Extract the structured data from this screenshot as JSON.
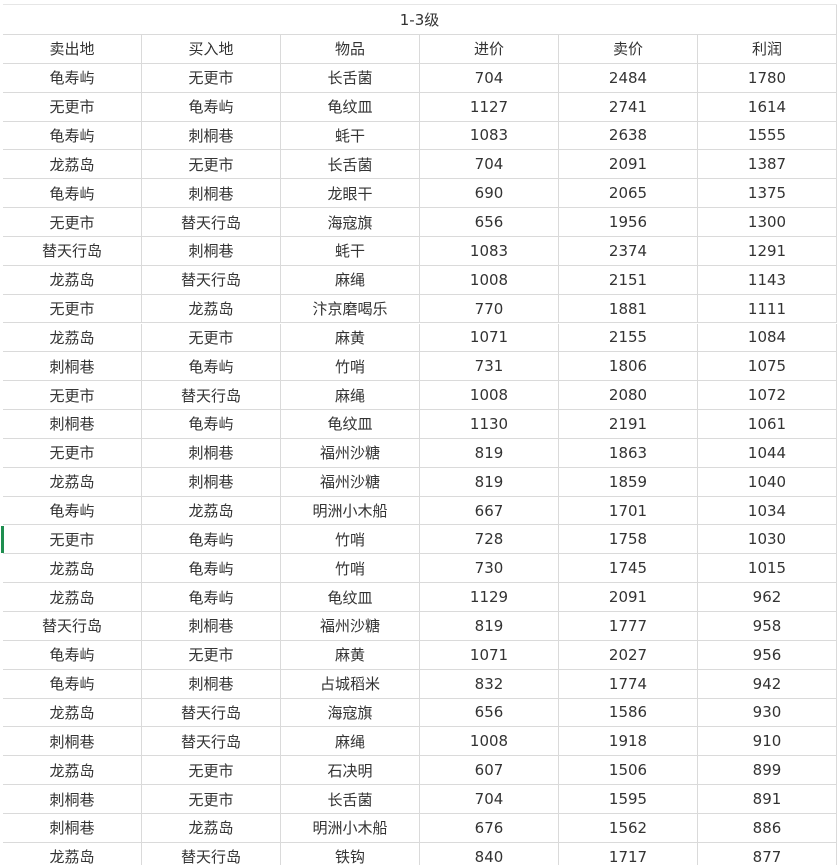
{
  "table": {
    "title": "1-3级",
    "header": [
      "卖出地",
      "买入地",
      "物品",
      "进价",
      "卖价",
      "利润"
    ],
    "rows": [
      [
        "龟寿屿",
        "无更市",
        "长舌菌",
        704,
        2484,
        1780
      ],
      [
        "无更市",
        "龟寿屿",
        "龟纹皿",
        1127,
        2741,
        1614
      ],
      [
        "龟寿屿",
        "刺桐巷",
        "蚝干",
        1083,
        2638,
        1555
      ],
      [
        "龙荔岛",
        "无更市",
        "长舌菌",
        704,
        2091,
        1387
      ],
      [
        "龟寿屿",
        "刺桐巷",
        "龙眼干",
        690,
        2065,
        1375
      ],
      [
        "无更市",
        "替天行岛",
        "海寇旗",
        656,
        1956,
        1300
      ],
      [
        "替天行岛",
        "刺桐巷",
        "蚝干",
        1083,
        2374,
        1291
      ],
      [
        "龙荔岛",
        "替天行岛",
        "麻绳",
        1008,
        2151,
        1143
      ],
      [
        "无更市",
        "龙荔岛",
        "汴京磨喝乐",
        770,
        1881,
        1111
      ],
      [
        "龙荔岛",
        "无更市",
        "麻黄",
        1071,
        2155,
        1084
      ],
      [
        "刺桐巷",
        "龟寿屿",
        "竹哨",
        731,
        1806,
        1075
      ],
      [
        "无更市",
        "替天行岛",
        "麻绳",
        1008,
        2080,
        1072
      ],
      [
        "刺桐巷",
        "龟寿屿",
        "龟纹皿",
        1130,
        2191,
        1061
      ],
      [
        "无更市",
        "刺桐巷",
        "福州沙糖",
        819,
        1863,
        1044
      ],
      [
        "龙荔岛",
        "刺桐巷",
        "福州沙糖",
        819,
        1859,
        1040
      ],
      [
        "龟寿屿",
        "龙荔岛",
        "明洲小木船",
        667,
        1701,
        1034
      ],
      [
        "无更市",
        "龟寿屿",
        "竹哨",
        728,
        1758,
        1030
      ],
      [
        "龙荔岛",
        "龟寿屿",
        "竹哨",
        730,
        1745,
        1015
      ],
      [
        "龙荔岛",
        "龟寿屿",
        "龟纹皿",
        1129,
        2091,
        962
      ],
      [
        "替天行岛",
        "刺桐巷",
        "福州沙糖",
        819,
        1777,
        958
      ],
      [
        "龟寿屿",
        "无更市",
        "麻黄",
        1071,
        2027,
        956
      ],
      [
        "龟寿屿",
        "刺桐巷",
        "占城稻米",
        832,
        1774,
        942
      ],
      [
        "龙荔岛",
        "替天行岛",
        "海寇旗",
        656,
        1586,
        930
      ],
      [
        "刺桐巷",
        "替天行岛",
        "麻绳",
        1008,
        1918,
        910
      ],
      [
        "龙荔岛",
        "无更市",
        "石决明",
        607,
        1506,
        899
      ],
      [
        "刺桐巷",
        "无更市",
        "长舌菌",
        704,
        1595,
        891
      ],
      [
        "刺桐巷",
        "龙荔岛",
        "明洲小木船",
        676,
        1562,
        886
      ],
      [
        "龙荔岛",
        "替天行岛",
        "铁钩",
        840,
        1717,
        877
      ]
    ]
  }
}
